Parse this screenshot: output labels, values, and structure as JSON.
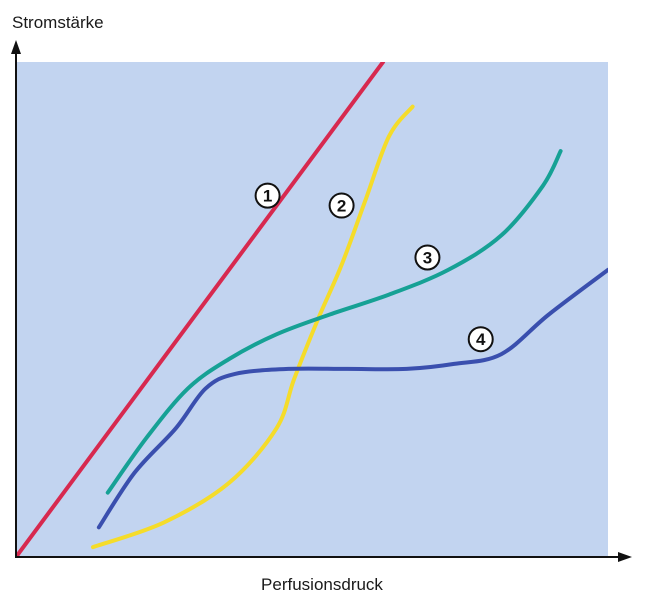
{
  "chart_data": {
    "type": "line",
    "title": "",
    "ylabel": "Stromstärke",
    "xlabel": "Perfusionsdruck",
    "xlim": [
      0,
      100
    ],
    "ylim": [
      0,
      100
    ],
    "grid": false,
    "axis_ticks": false,
    "plot_background": "#c2d4f0",
    "series": [
      {
        "label": "1",
        "color": "#d7294f",
        "points": [
          [
            0,
            0
          ],
          [
            62,
            100
          ]
        ],
        "label_at": [
          42.5,
          73
        ]
      },
      {
        "label": "2",
        "color": "#f5dc2a",
        "points": [
          [
            13,
            2
          ],
          [
            25,
            7
          ],
          [
            36,
            15
          ],
          [
            44,
            26
          ],
          [
            47,
            36
          ],
          [
            51,
            48
          ],
          [
            55,
            59
          ],
          [
            59,
            72
          ],
          [
            63,
            85
          ],
          [
            67,
            91
          ]
        ],
        "label_at": [
          55,
          71
        ]
      },
      {
        "label": "3",
        "color": "#16a195",
        "points": [
          [
            15.5,
            13
          ],
          [
            22,
            24
          ],
          [
            29,
            34
          ],
          [
            36,
            40
          ],
          [
            44,
            45
          ],
          [
            53,
            49
          ],
          [
            63,
            53
          ],
          [
            73,
            58
          ],
          [
            82,
            65
          ],
          [
            89,
            75
          ],
          [
            92,
            82
          ]
        ],
        "label_at": [
          69.5,
          60.5
        ]
      },
      {
        "label": "4",
        "color": "#3a4fae",
        "points": [
          [
            14,
            6
          ],
          [
            20,
            17
          ],
          [
            27,
            26
          ],
          [
            32,
            34
          ],
          [
            37,
            37
          ],
          [
            46,
            38
          ],
          [
            56,
            38
          ],
          [
            66,
            38
          ],
          [
            74,
            39
          ],
          [
            82,
            41
          ],
          [
            90,
            49
          ],
          [
            100,
            58
          ]
        ],
        "label_at": [
          78.5,
          44
        ]
      }
    ]
  }
}
